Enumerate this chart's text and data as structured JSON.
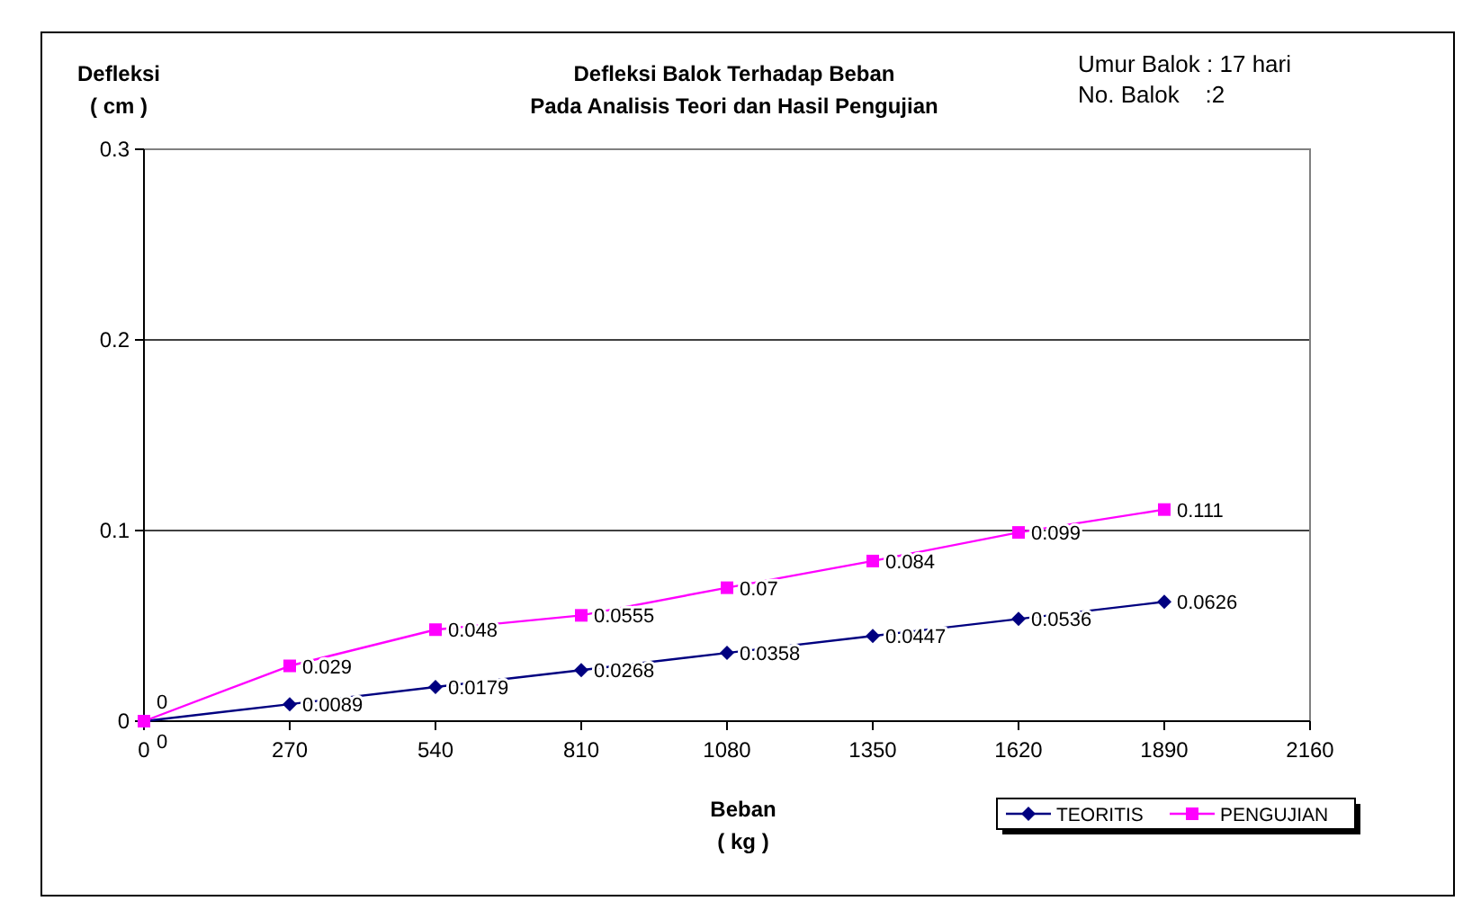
{
  "chart_data": {
    "type": "line",
    "title": "Defleksi Balok Terhadap Beban\nPada Analisis Teori dan Hasil Pengujian",
    "xlabel": "Beban\n( kg )",
    "ylabel": "Defleksi\n( cm )",
    "annotations": [
      "Umur Balok : 17 hari",
      "No. Balok    :2"
    ],
    "x": [
      0,
      270,
      540,
      810,
      1080,
      1350,
      1620,
      1890
    ],
    "series": [
      {
        "name": "TEORITIS",
        "color": "#000080",
        "marker": "diamond",
        "values": [
          0,
          0.0089,
          0.0179,
          0.0268,
          0.0358,
          0.0447,
          0.0536,
          0.0626
        ]
      },
      {
        "name": "PENGUJIAN",
        "color": "#ff00ff",
        "marker": "square",
        "values": [
          0,
          0.029,
          0.048,
          0.0555,
          0.07,
          0.084,
          0.099,
          0.111
        ]
      }
    ],
    "xlim": [
      0,
      2160
    ],
    "xticks": [
      0,
      270,
      540,
      810,
      1080,
      1350,
      1620,
      1890,
      2160
    ],
    "ylim": [
      0,
      0.3
    ],
    "yticks": [
      0,
      0.1,
      0.2,
      0.3
    ],
    "grid": "y",
    "legend": "bottom right",
    "data_labels": true,
    "line_style": "solid"
  }
}
